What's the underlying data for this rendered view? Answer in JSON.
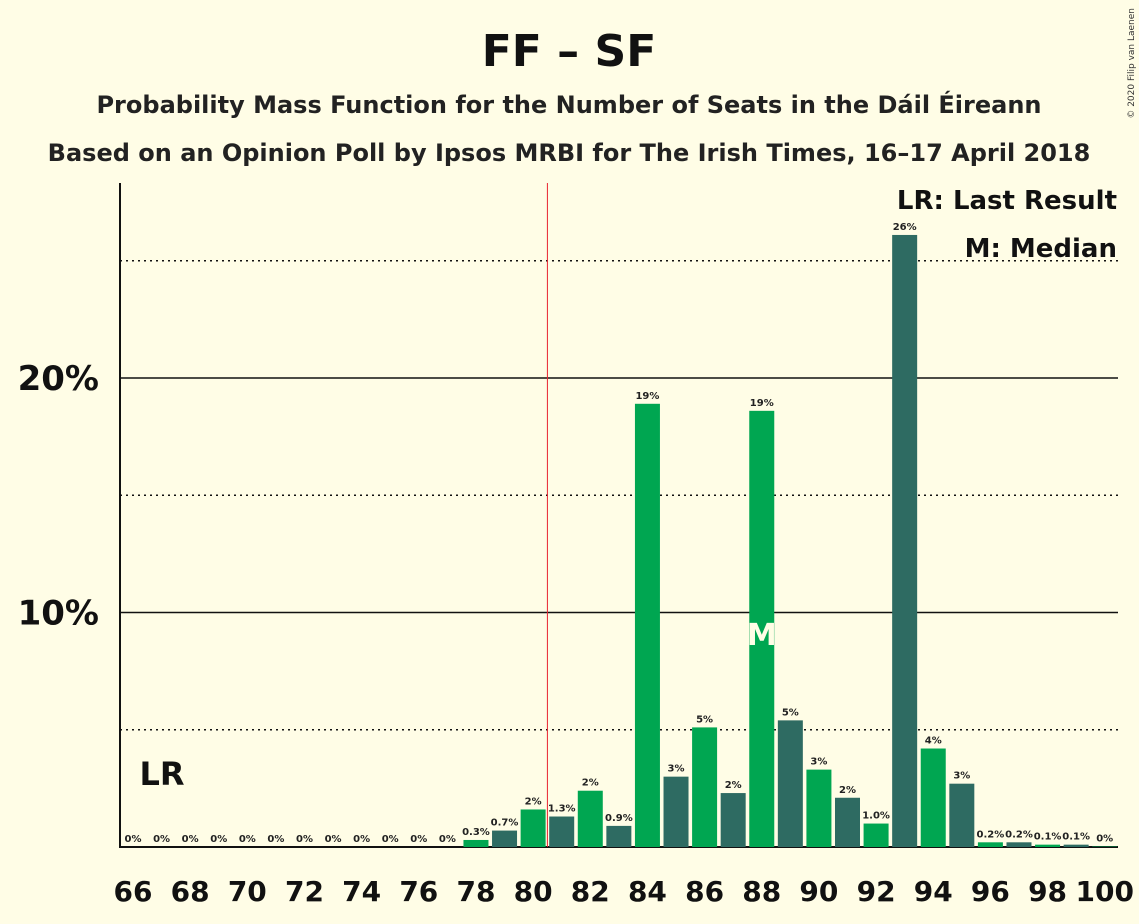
{
  "chart_data": {
    "type": "bar",
    "title": "FF – SF",
    "subtitle": "Probability Mass Function for the Number of Seats in the Dáil Éireann",
    "subtitle2": "Based on an Opinion Poll by Ipsos MRBI for The Irish Times, 16–17 April 2018",
    "credit": "© 2020 Filip van Laenen",
    "legend": {
      "lr": "LR: Last Result",
      "median": "M: Median",
      "placement": "top-right"
    },
    "lr_label": "LR",
    "median_label": "M",
    "last_result_seat": 67,
    "majority_line_seat": 80.5,
    "median_seat": 88,
    "x": [
      66,
      67,
      68,
      69,
      70,
      71,
      72,
      73,
      74,
      75,
      76,
      77,
      78,
      79,
      80,
      81,
      82,
      83,
      84,
      85,
      86,
      87,
      88,
      89,
      90,
      91,
      92,
      93,
      94,
      95,
      96,
      97,
      98,
      99,
      100
    ],
    "values": [
      0,
      0,
      0,
      0,
      0,
      0,
      0,
      0,
      0,
      0,
      0,
      0,
      0.3,
      0.7,
      1.6,
      1.3,
      2.4,
      0.9,
      18.9,
      3.0,
      5.1,
      2.3,
      18.6,
      5.4,
      3.3,
      2.1,
      1.0,
      26.1,
      4.2,
      2.7,
      0.2,
      0.2,
      0.1,
      0.1,
      0.02
    ],
    "labels": [
      "0%",
      "0%",
      "0%",
      "0%",
      "0%",
      "0%",
      "0%",
      "0%",
      "0%",
      "0%",
      "0%",
      "0%",
      "0.3%",
      "0.7%",
      "2%",
      "1.3%",
      "2%",
      "0.9%",
      "19%",
      "3%",
      "5%",
      "2%",
      "19%",
      "5%",
      "3%",
      "2%",
      "1.0%",
      "26%",
      "4%",
      "3%",
      "0.2%",
      "0.2%",
      "0.1%",
      "0.1%",
      "0%"
    ],
    "xticks": [
      66,
      68,
      70,
      72,
      74,
      76,
      78,
      80,
      82,
      84,
      86,
      88,
      90,
      92,
      94,
      96,
      98,
      100
    ],
    "yticks": [
      {
        "value": 10,
        "label": "10%"
      },
      {
        "value": 20,
        "label": "20%"
      }
    ],
    "minor_gridlines": [
      5,
      15,
      25
    ],
    "ylim": [
      0,
      28.5
    ],
    "colors": {
      "even": "#00A651",
      "odd": "#2E6B62",
      "majority_line": "#E8232F",
      "background": "#FFFDE6"
    }
  }
}
